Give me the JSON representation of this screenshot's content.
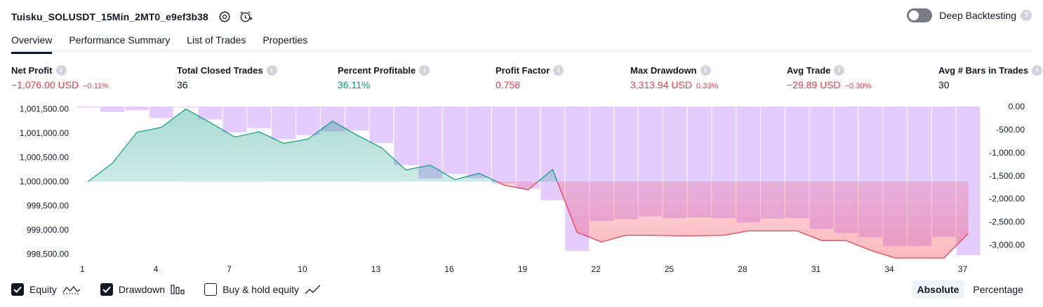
{
  "header": {
    "title": "Tuisku_SOLUSDT_15Min_2MT0_e9ef3b38",
    "deep_backtesting_label": "Deep Backtesting",
    "help_glyph": "?"
  },
  "tabs": [
    {
      "label": "Overview",
      "active": true
    },
    {
      "label": "Performance Summary",
      "active": false
    },
    {
      "label": "List of Trades",
      "active": false
    },
    {
      "label": "Properties",
      "active": false
    }
  ],
  "metrics": [
    {
      "label": "Net Profit",
      "value": "−1,076.00 USD",
      "pct": "−0.11%",
      "color": "red"
    },
    {
      "label": "Total Closed Trades",
      "value": "36",
      "pct": "",
      "color": "neutral"
    },
    {
      "label": "Percent Profitable",
      "value": "36.11%",
      "pct": "",
      "color": "green"
    },
    {
      "label": "Profit Factor",
      "value": "0.758",
      "pct": "",
      "color": "red"
    },
    {
      "label": "Max Drawdown",
      "value": "3,313.94 USD",
      "pct": "0.33%",
      "color": "red"
    },
    {
      "label": "Avg Trade",
      "value": "−29.89 USD",
      "pct": "−0.30%",
      "color": "red"
    },
    {
      "label": "Avg # Bars in Trades",
      "value": "30",
      "pct": "",
      "color": "neutral"
    }
  ],
  "legend": {
    "equity_label": "Equity",
    "drawdown_label": "Drawdown",
    "buyhold_label": "Buy & hold equity",
    "equity_checked": true,
    "drawdown_checked": true,
    "buyhold_checked": false
  },
  "mode": {
    "absolute_label": "Absolute",
    "percentage_label": "Percentage",
    "selected": "Absolute"
  },
  "colors": {
    "profit": "#089981",
    "loss": "#f23645",
    "drawdown_bar": "#e1c3ff",
    "equity_fill_positive": "#d4efe7",
    "equity_fill_negative": "#ffc8c8"
  },
  "chart_data": {
    "type": "area",
    "x": [
      1,
      2,
      3,
      4,
      5,
      6,
      7,
      8,
      9,
      10,
      11,
      12,
      13,
      14,
      15,
      16,
      17,
      18,
      19,
      20,
      21,
      22,
      23,
      24,
      25,
      26,
      27,
      28,
      29,
      30,
      31,
      32,
      33,
      34,
      35,
      36,
      37
    ],
    "x_ticks": [
      "1",
      "4",
      "7",
      "10",
      "13",
      "16",
      "19",
      "22",
      "25",
      "28",
      "31",
      "34",
      "37"
    ],
    "y_left_ticks": [
      "1,001,500.00",
      "1,001,000.00",
      "1,000,500.00",
      "1,000,000.00",
      "999,500.00",
      "999,000.00",
      "998,500.00"
    ],
    "y_right_ticks": [
      "0.00",
      "-500.00",
      "-1,000.00",
      "-1,500.00",
      "-2,000.00",
      "-2,500.00",
      "-3,000.00"
    ],
    "baseline": 1000000,
    "series": [
      {
        "name": "Equity",
        "axis": "left",
        "ylim": [
          998450,
          1001580
        ],
        "values": [
          1000000,
          1000380,
          1001020,
          1001120,
          1001500,
          1001220,
          1000920,
          1001030,
          1000790,
          1000880,
          1001250,
          1000960,
          1000700,
          1000240,
          1000340,
          1000040,
          1000170,
          999930,
          999830,
          1000250,
          998950,
          998750,
          998890,
          998890,
          998880,
          998880,
          998890,
          998980,
          998980,
          998980,
          998780,
          998780,
          998580,
          998420,
          998420,
          998420,
          998930
        ]
      },
      {
        "name": "Drawdown",
        "type": "bar",
        "axis": "right",
        "ylim": [
          -3250,
          30
        ],
        "values": [
          -20,
          -120,
          -80,
          -250,
          0,
          -280,
          -560,
          -470,
          -710,
          -620,
          -540,
          -520,
          -790,
          -1270,
          -1560,
          -1460,
          -1550,
          -1670,
          -1780,
          -2030,
          -3130,
          -2480,
          -2440,
          -2380,
          -2420,
          -2400,
          -2420,
          -2510,
          -2430,
          -2420,
          -2650,
          -2740,
          -2830,
          -3020,
          -3020,
          -2820,
          -3220
        ]
      }
    ]
  }
}
